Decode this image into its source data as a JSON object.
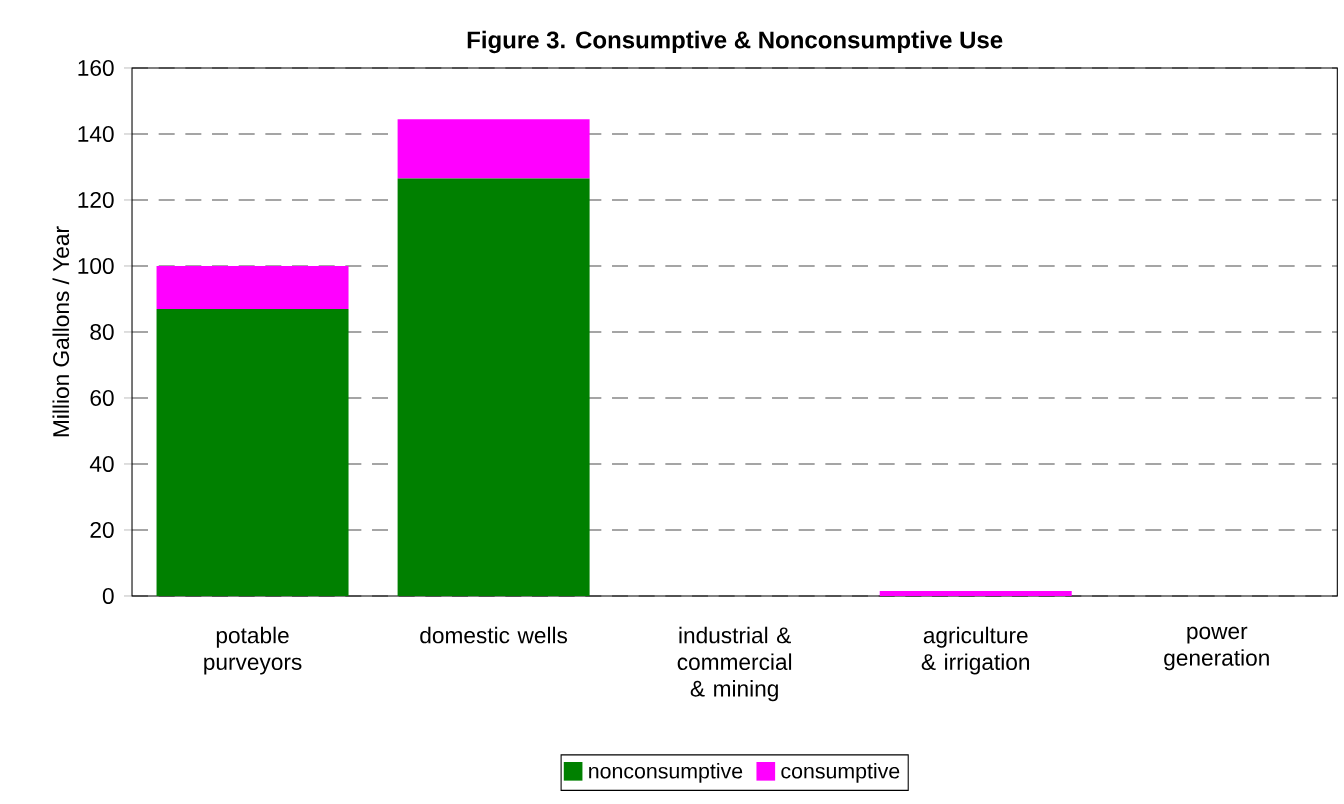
{
  "chart_data": {
    "type": "bar",
    "stacked": true,
    "title": "Figure 3. Consumptive & Nonconsumptive Use",
    "ylabel": "Million Gallons / Year",
    "categories": [
      "potable purveyors",
      "domestic wells",
      "industrial & commercial & mining",
      "agriculture & irrigation",
      "power generation"
    ],
    "series": [
      {
        "name": "nonconsumptive",
        "color": "#008000",
        "values": [
          87,
          126.5,
          0,
          0,
          0
        ]
      },
      {
        "name": "consumptive",
        "color": "#ff00ff",
        "values": [
          13,
          18,
          0,
          1.5,
          0
        ]
      }
    ],
    "ylim": [
      0,
      160
    ],
    "yticks": [
      0,
      20,
      40,
      60,
      80,
      100,
      120,
      140,
      160
    ],
    "grid": "y",
    "legend": "bottom"
  }
}
